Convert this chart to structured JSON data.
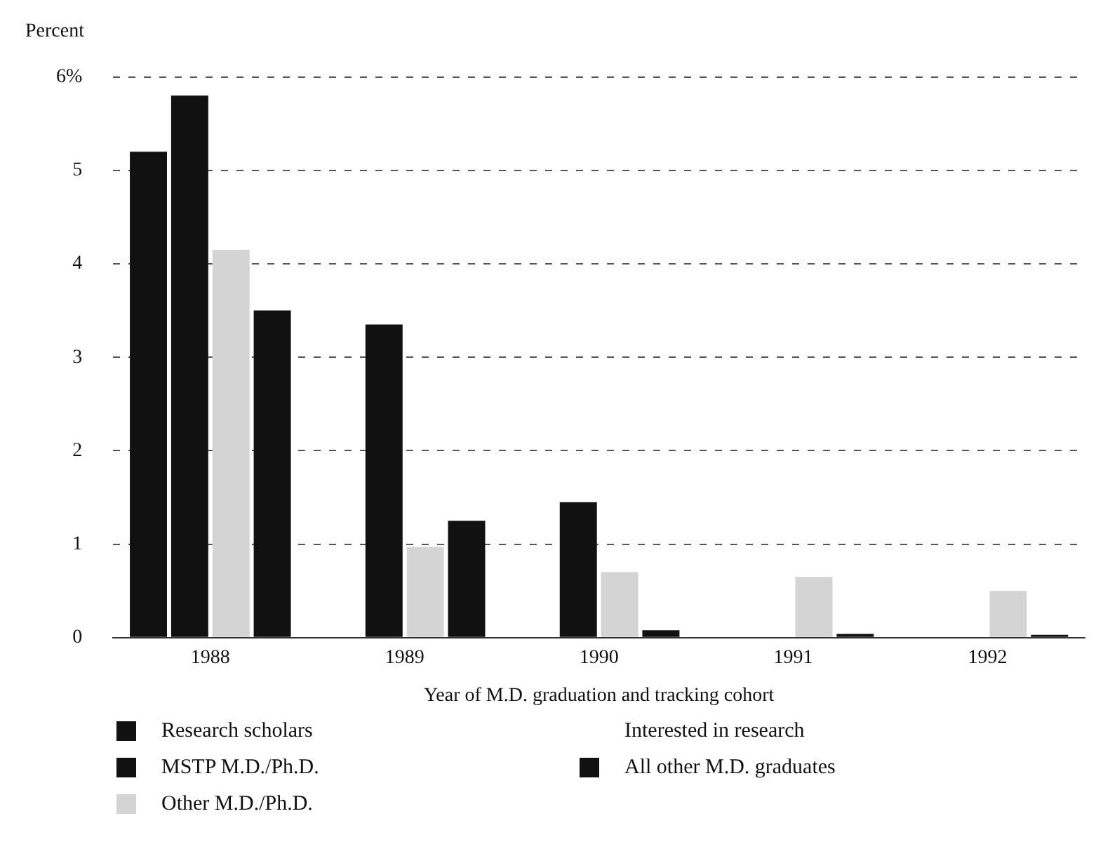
{
  "chart_data": {
    "type": "bar",
    "ylabel": "Percent",
    "xlabel": "Year of M.D. graduation and tracking cohort",
    "categories": [
      "1988",
      "1989",
      "1990",
      "1991",
      "1992"
    ],
    "series": [
      {
        "name": "Research scholars",
        "color": "#111111",
        "values": [
          5.2,
          null,
          null,
          null,
          null
        ]
      },
      {
        "name": "MSTP  M.D./Ph.D.",
        "color": "#111111",
        "values": [
          5.8,
          3.35,
          1.45,
          null,
          null
        ]
      },
      {
        "name": "Other M.D./Ph.D.",
        "color": "#d4d4d4",
        "values": [
          4.15,
          0.97,
          0.7,
          0.65,
          0.5
        ]
      },
      {
        "name": "All other M.D. graduates",
        "color": "#111111",
        "values": [
          3.5,
          1.25,
          0.08,
          0.04,
          0.03
        ]
      }
    ],
    "legend_title": "Interested in research",
    "ylim": [
      0,
      6
    ],
    "yticks": [
      0,
      1,
      2,
      3,
      4,
      5,
      {
        "value": 6,
        "label": "6%"
      }
    ],
    "grid": "y",
    "legend": "bottom"
  }
}
